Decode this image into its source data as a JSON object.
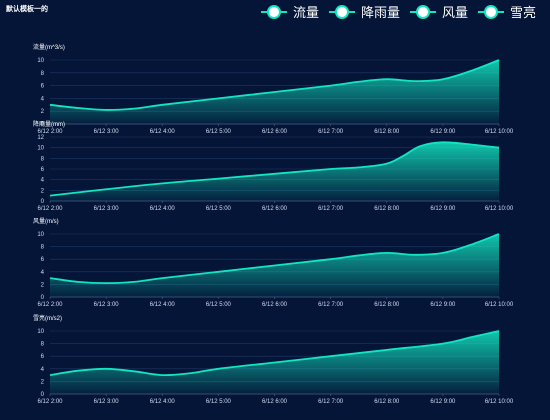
{
  "page": {
    "title": "默认模板一的"
  },
  "legend": [
    {
      "label": "流量"
    },
    {
      "label": "降雨量"
    },
    {
      "label": "风量"
    },
    {
      "label": "雪亮"
    }
  ],
  "colors": {
    "line": "#12e6c0",
    "background": "#041538",
    "grid": "#1f3868",
    "axis": "#4a5e86"
  },
  "chart_data": [
    {
      "type": "area",
      "ylabel": "流量(m^3/s)",
      "categories": [
        "6/12 2:00",
        "6/12 3:00",
        "6/12 4:00",
        "6/12 5:00",
        "6/12 6:00",
        "6/12 7:00",
        "6/12 8:00",
        "6/12 9:00",
        "6/12 10:00"
      ],
      "x": [
        2,
        2.5,
        3,
        3.5,
        4,
        5,
        6,
        7,
        7.5,
        8,
        8.5,
        9,
        9.5,
        10
      ],
      "values": [
        3.0,
        2.5,
        2.2,
        2.4,
        3.0,
        4.0,
        5.0,
        6.0,
        6.6,
        7.0,
        6.7,
        7.0,
        8.3,
        10.0
      ],
      "ylim": [
        0,
        10
      ],
      "yticks": [
        0,
        2,
        4,
        6,
        8,
        10
      ],
      "grid": true
    },
    {
      "type": "area",
      "ylabel": "降雨量(mm)",
      "categories": [
        "6/12 2:00",
        "6/12 3:00",
        "6/12 4:00",
        "6/12 5:00",
        "6/12 6:00",
        "6/12 7:00",
        "6/12 8:00",
        "6/12 9:00",
        "6/12 10:00"
      ],
      "x": [
        2,
        3,
        4,
        5,
        6,
        7,
        7.5,
        8,
        8.3,
        8.6,
        9,
        9.5,
        10
      ],
      "values": [
        1.0,
        2.2,
        3.3,
        4.2,
        5.1,
        6.0,
        6.3,
        7.0,
        8.5,
        10.3,
        11.0,
        10.6,
        10.0
      ],
      "ylim": [
        0,
        12
      ],
      "yticks": [
        0,
        2,
        4,
        6,
        8,
        10,
        12
      ],
      "grid": true
    },
    {
      "type": "area",
      "ylabel": "风量(m/s)",
      "categories": [
        "6/12 2:00",
        "6/12 3:00",
        "6/12 4:00",
        "6/12 5:00",
        "6/12 6:00",
        "6/12 7:00",
        "6/12 8:00",
        "6/12 9:00",
        "6/12 10:00"
      ],
      "x": [
        2,
        2.5,
        3,
        3.5,
        4,
        5,
        6,
        7,
        7.5,
        8,
        8.5,
        9,
        9.5,
        10
      ],
      "values": [
        3.0,
        2.4,
        2.2,
        2.4,
        3.0,
        4.0,
        5.0,
        6.0,
        6.6,
        7.0,
        6.7,
        7.0,
        8.3,
        10.0
      ],
      "ylim": [
        0,
        10
      ],
      "yticks": [
        0,
        2,
        4,
        6,
        8,
        10
      ],
      "grid": true
    },
    {
      "type": "area",
      "ylabel": "雪亮(m/s2)",
      "categories": [
        "6/12 2:00",
        "6/12 3:00",
        "6/12 4:00",
        "6/12 5:00",
        "6/12 6:00",
        "6/12 7:00",
        "6/12 8:00",
        "6/12 9:00",
        "6/12 10:00"
      ],
      "x": [
        2,
        2.5,
        3,
        3.5,
        4,
        4.5,
        5,
        6,
        7,
        8,
        9,
        9.5,
        10
      ],
      "values": [
        3.0,
        3.7,
        4.0,
        3.6,
        3.0,
        3.3,
        4.0,
        5.0,
        6.0,
        7.0,
        8.0,
        9.0,
        10.0
      ],
      "ylim": [
        0,
        10
      ],
      "yticks": [
        0,
        2,
        4,
        6,
        8,
        10
      ],
      "grid": true
    }
  ]
}
